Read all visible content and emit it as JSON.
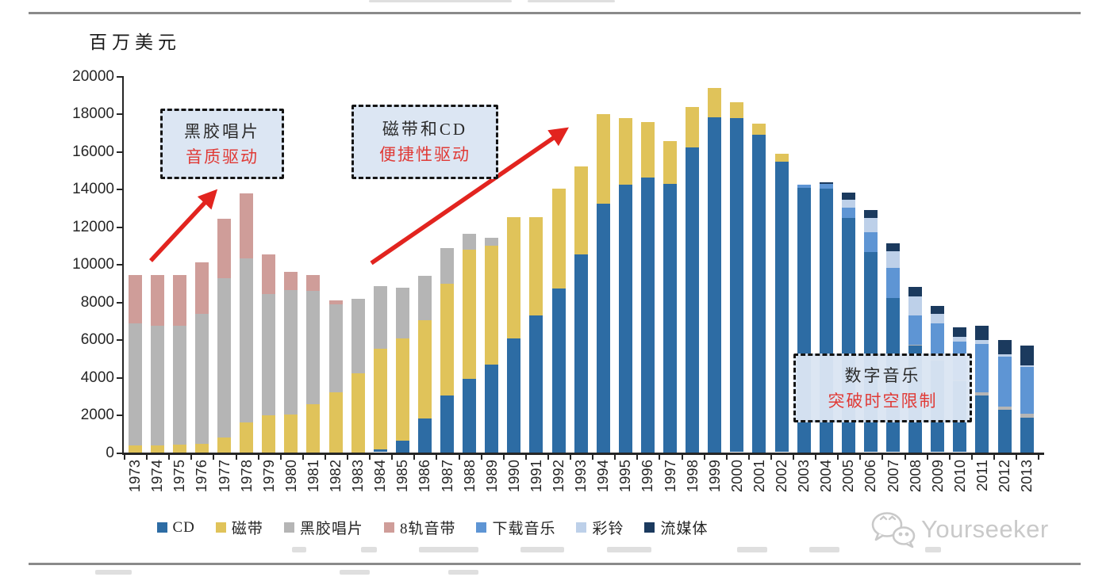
{
  "chart_data": {
    "type": "bar",
    "stacked": true,
    "ylabel": "百万美元",
    "ylim": [
      0,
      20000
    ],
    "ytick_step": 2000,
    "grid": false,
    "legend_position": "bottom",
    "categories": [
      "1973",
      "1974",
      "1975",
      "1976",
      "1977",
      "1978",
      "1979",
      "1980",
      "1981",
      "1982",
      "1983",
      "1984",
      "1985",
      "1986",
      "1987",
      "1988",
      "1989",
      "1990",
      "1991",
      "1992",
      "1993",
      "1994",
      "1995",
      "1996",
      "1997",
      "1998",
      "1999",
      "2000",
      "2001",
      "2002",
      "2003",
      "2004",
      "2005",
      "2006",
      "2007",
      "2008",
      "2009",
      "2010",
      "2011",
      "2012",
      "2013"
    ],
    "series": [
      {
        "name": "CD",
        "color": "#2d6ca4",
        "values": [
          0,
          0,
          0,
          0,
          0,
          0,
          0,
          0,
          0,
          0,
          0,
          130,
          600,
          1800,
          3000,
          3900,
          4650,
          6050,
          7250,
          8700,
          10500,
          13200,
          14200,
          14600,
          14250,
          16200,
          17800,
          17730,
          16850,
          15420,
          14050,
          14000,
          12450,
          10620,
          8170,
          5650,
          4880,
          3760,
          3000,
          2250,
          1850
        ]
      },
      {
        "name": "磁带",
        "color": "#e0c35a",
        "values": [
          350,
          350,
          400,
          450,
          800,
          1600,
          1950,
          2000,
          2550,
          3200,
          4200,
          5350,
          5450,
          5200,
          5950,
          6850,
          6300,
          6450,
          5250,
          5300,
          4700,
          4750,
          3550,
          2950,
          2280,
          2150,
          1530,
          870,
          590,
          450,
          0,
          0,
          0,
          0,
          0,
          0,
          0,
          0,
          0,
          0,
          0
        ]
      },
      {
        "name": "黑胶唱片",
        "color": "#b5b5b5",
        "values": [
          6500,
          6350,
          6300,
          6900,
          8450,
          8700,
          6450,
          6600,
          6000,
          4650,
          3950,
          3350,
          2700,
          2350,
          1900,
          850,
          450,
          0,
          0,
          0,
          0,
          0,
          0,
          0,
          0,
          0,
          0,
          0,
          0,
          0,
          0,
          0,
          0,
          0,
          0,
          60,
          70,
          90,
          180,
          170,
          180
        ]
      },
      {
        "name": "8轨音带",
        "color": "#cf9d99",
        "values": [
          2550,
          2700,
          2700,
          2750,
          3150,
          3450,
          2100,
          1000,
          850,
          200,
          0,
          0,
          0,
          0,
          0,
          0,
          0,
          0,
          0,
          0,
          0,
          0,
          0,
          0,
          0,
          0,
          0,
          0,
          0,
          0,
          0,
          0,
          0,
          0,
          0,
          0,
          0,
          0,
          0,
          0,
          0
        ]
      },
      {
        "name": "下载音乐",
        "color": "#5e95d4",
        "values": [
          0,
          0,
          0,
          0,
          0,
          0,
          0,
          0,
          0,
          0,
          0,
          0,
          0,
          0,
          0,
          0,
          0,
          0,
          0,
          0,
          0,
          0,
          0,
          0,
          0,
          0,
          0,
          0,
          0,
          0,
          150,
          250,
          550,
          1050,
          1610,
          1540,
          1900,
          2010,
          2550,
          2650,
          2500
        ]
      },
      {
        "name": "彩铃",
        "color": "#bdd0e9",
        "values": [
          0,
          0,
          0,
          0,
          0,
          0,
          0,
          0,
          0,
          0,
          0,
          0,
          0,
          0,
          0,
          0,
          0,
          0,
          0,
          0,
          0,
          0,
          0,
          0,
          0,
          0,
          0,
          0,
          0,
          0,
          0,
          0,
          420,
          770,
          910,
          1020,
          480,
          250,
          220,
          130,
          100
        ]
      },
      {
        "name": "流媒体",
        "color": "#1b3a5e",
        "values": [
          0,
          0,
          0,
          0,
          0,
          0,
          0,
          0,
          0,
          0,
          0,
          0,
          0,
          0,
          0,
          0,
          0,
          0,
          0,
          0,
          0,
          0,
          0,
          0,
          0,
          0,
          0,
          0,
          0,
          0,
          0,
          80,
          350,
          420,
          420,
          530,
          420,
          520,
          750,
          750,
          1020
        ]
      }
    ],
    "annotations": [
      {
        "line1": "黑胶唱片",
        "line2": "音质驱动"
      },
      {
        "line1": "磁带和CD",
        "line2": "便捷性驱动"
      },
      {
        "line1": "数字音乐",
        "line2": "突破时空限制"
      }
    ],
    "arrow_color": "#e2241f"
  },
  "watermark": {
    "icon": "wechat-icon",
    "text": "Yourseeker"
  }
}
